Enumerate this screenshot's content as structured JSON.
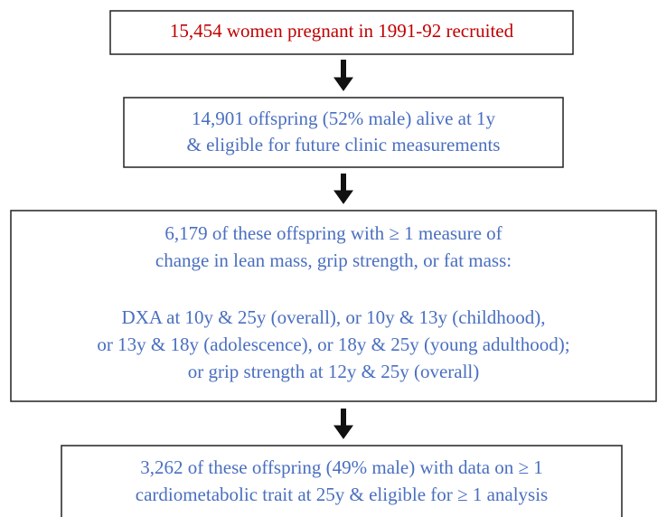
{
  "nodes": [
    {
      "lines": [
        "15,454 women pregnant in 1991-92 recruited"
      ]
    },
    {
      "lines": [
        "14,901 offspring (52% male) alive at 1y",
        "& eligible for future clinic measurements"
      ]
    },
    {
      "lines": [
        "6,179 of these offspring with ≥ 1 measure of",
        "change in lean mass, grip strength, or fat mass:",
        "DXA at 10y & 25y (overall), or 10y & 13y (childhood),",
        "or 13y & 18y (adolescence), or 18y & 25y (young adulthood);",
        "or grip strength at 12y & 25y (overall)"
      ]
    },
    {
      "lines": [
        "3,262 of these offspring (49% male) with data on ≥ 1",
        "cardiometabolic trait at 25y & eligible for  ≥ 1 analysis"
      ]
    }
  ]
}
